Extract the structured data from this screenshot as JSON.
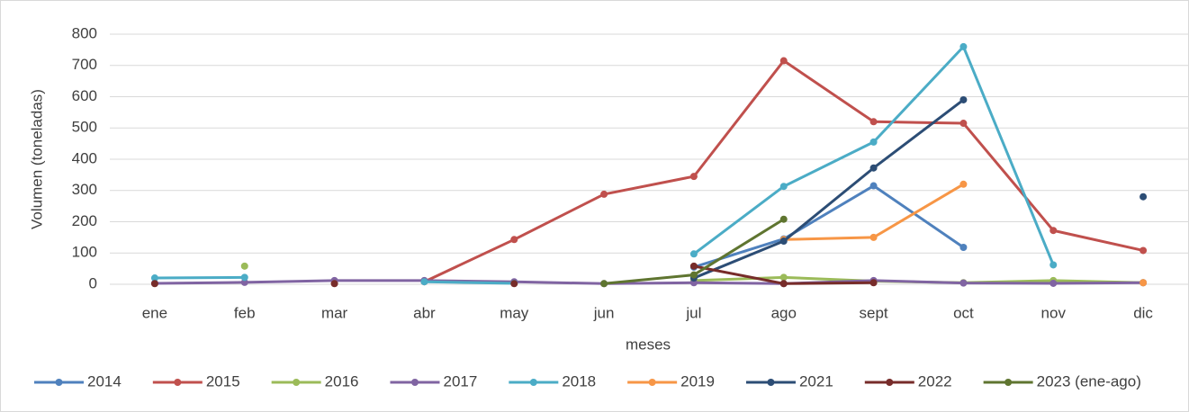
{
  "chart_data": {
    "type": "line",
    "y_label": "Volumen (toneladas)",
    "x_label": "meses",
    "categories": [
      "ene",
      "feb",
      "mar",
      "abr",
      "may",
      "jun",
      "jul",
      "ago",
      "sept",
      "oct",
      "nov",
      "dic"
    ],
    "ylim": [
      0,
      800
    ],
    "yticks": [
      0,
      100,
      200,
      300,
      400,
      500,
      600,
      700,
      800
    ],
    "grid": true,
    "legend": "bottom",
    "series": [
      {
        "name": "2014",
        "color": "#4f81bd",
        "values": [
          null,
          null,
          null,
          null,
          null,
          null,
          55,
          145,
          315,
          118,
          null,
          null
        ]
      },
      {
        "name": "2015",
        "color": "#c0504d",
        "values": [
          null,
          null,
          null,
          8,
          143,
          288,
          345,
          715,
          520,
          515,
          172,
          108
        ]
      },
      {
        "name": "2016",
        "color": "#9bbb59",
        "values": [
          null,
          58,
          null,
          null,
          null,
          null,
          12,
          22,
          10,
          5,
          12,
          5
        ]
      },
      {
        "name": "2017",
        "color": "#8064a2",
        "values": [
          3,
          6,
          12,
          12,
          8,
          2,
          5,
          2,
          12,
          4,
          3,
          5
        ]
      },
      {
        "name": "2018",
        "color": "#4bacc6",
        "values": [
          20,
          22,
          null,
          8,
          3,
          null,
          97,
          313,
          455,
          760,
          62,
          null
        ]
      },
      {
        "name": "2019",
        "color": "#f79646",
        "values": [
          null,
          null,
          null,
          null,
          null,
          null,
          null,
          143,
          150,
          320,
          null,
          5
        ]
      },
      {
        "name": "2021",
        "color": "#2c4d75",
        "values": [
          null,
          null,
          null,
          null,
          null,
          null,
          20,
          138,
          372,
          590,
          null,
          280
        ]
      },
      {
        "name": "2022",
        "color": "#772c2a",
        "values": [
          2,
          null,
          2,
          null,
          2,
          null,
          58,
          2,
          5,
          null,
          null,
          null
        ]
      },
      {
        "name": "2023 (ene-ago)",
        "color": "#5f7530",
        "values": [
          null,
          null,
          null,
          null,
          null,
          2,
          30,
          208,
          null,
          null,
          null,
          null
        ]
      }
    ]
  }
}
